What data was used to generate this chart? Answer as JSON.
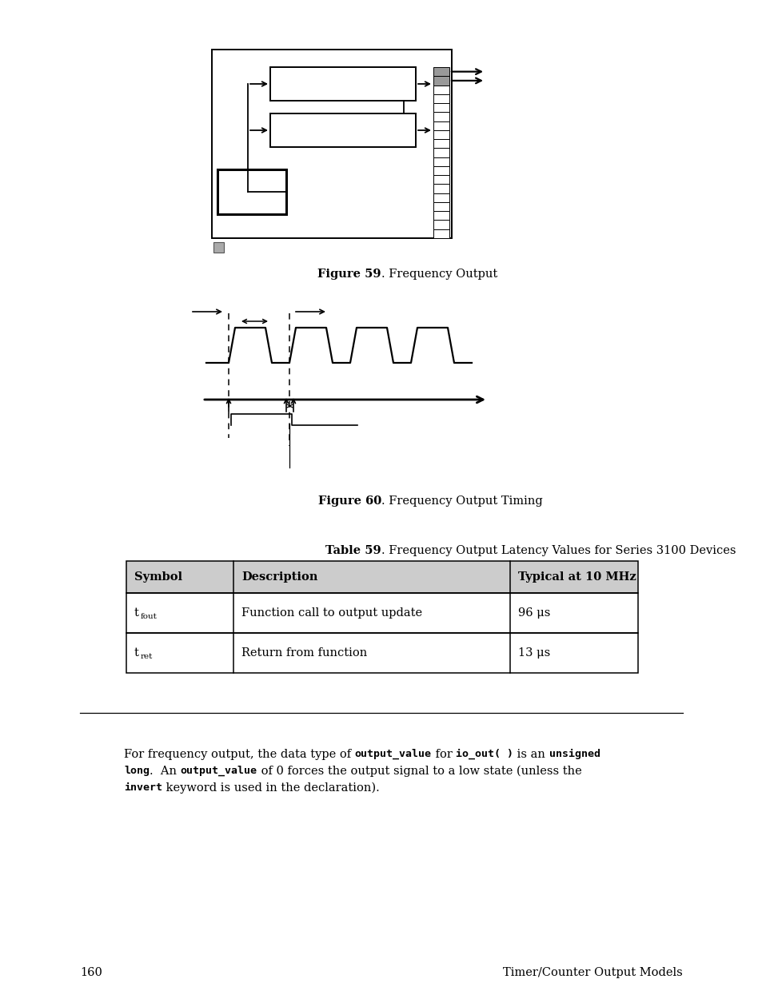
{
  "fig_width": 9.54,
  "fig_height": 12.35,
  "bg_color": "#ffffff",
  "fig59_caption_bold": "Figure 59",
  "fig59_caption_normal": ". Frequency Output",
  "fig60_caption_bold": "Figure 60",
  "fig60_caption_normal": ". Frequency Output Timing",
  "table_title_bold": "Table 59",
  "table_title_normal": ". Frequency Output Latency Values for Series 3100 Devices",
  "table_headers": [
    "Symbol",
    "Description",
    "Typical at 10 MHz"
  ],
  "table_row1_sub": "fout",
  "table_row1_col2": "Function call to output update",
  "table_row1_col3": "96 μs",
  "table_row2_sub": "ret",
  "table_row2_col2": "Return from function",
  "table_row2_col3": "13 μs",
  "page_num": "160",
  "page_footer_right": "Timer/Counter Output Models",
  "header_bg": "#cccccc",
  "text_color": "#000000"
}
